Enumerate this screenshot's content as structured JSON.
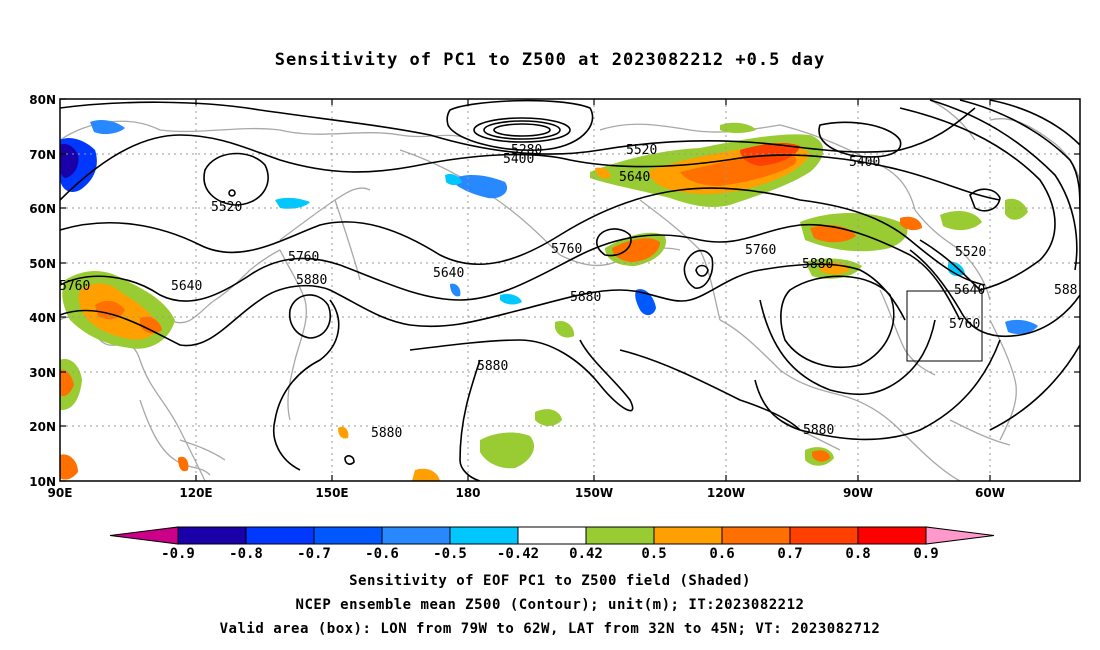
{
  "title": "Sensitivity of PC1 to Z500 at 2023082212 +0.5 day",
  "axes": {
    "lat_labels": [
      "80N",
      "70N",
      "60N",
      "50N",
      "40N",
      "30N",
      "20N",
      "10N"
    ],
    "lon_labels": [
      "90E",
      "120E",
      "150E",
      "180",
      "150W",
      "120W",
      "90W",
      "60W"
    ]
  },
  "contour_labels": [
    "5280",
    "5400",
    "5520",
    "5400",
    "5520",
    "5640",
    "5640",
    "5520",
    "5640",
    "5760",
    "5880",
    "5760",
    "5640",
    "5760",
    "5880",
    "5880",
    "5880",
    "5760",
    "5880",
    "5880",
    "5400",
    "5520",
    "5640",
    "5760",
    "588"
  ],
  "colorbar": {
    "labels": [
      "-0.9",
      "-0.8",
      "-0.7",
      "-0.6",
      "-0.5",
      "-0.42",
      "0.42",
      "0.5",
      "0.6",
      "0.7",
      "0.8",
      "0.9"
    ],
    "colors": [
      "#1a00a8",
      "#0038ff",
      "#0058ff",
      "#2888ff",
      "#00c8ff",
      "#ffffff",
      "#99cc33",
      "#ffa000",
      "#ff7000",
      "#ff4000",
      "#ff0000"
    ],
    "left_arrow_color": "#cc0088",
    "right_arrow_color": "#ff99cc"
  },
  "valid_box": {
    "lon_range": "79W to 62W",
    "lat_range": "32N to 45N"
  },
  "captions": [
    "Sensitivity of EOF PC1 to Z500 field (Shaded)",
    "NCEP ensemble mean Z500 (Contour); unit(m); IT:2023082212",
    "Valid area (box): LON from 79W to 62W, LAT from 32N to 45N; VT: 2023082712"
  ]
}
